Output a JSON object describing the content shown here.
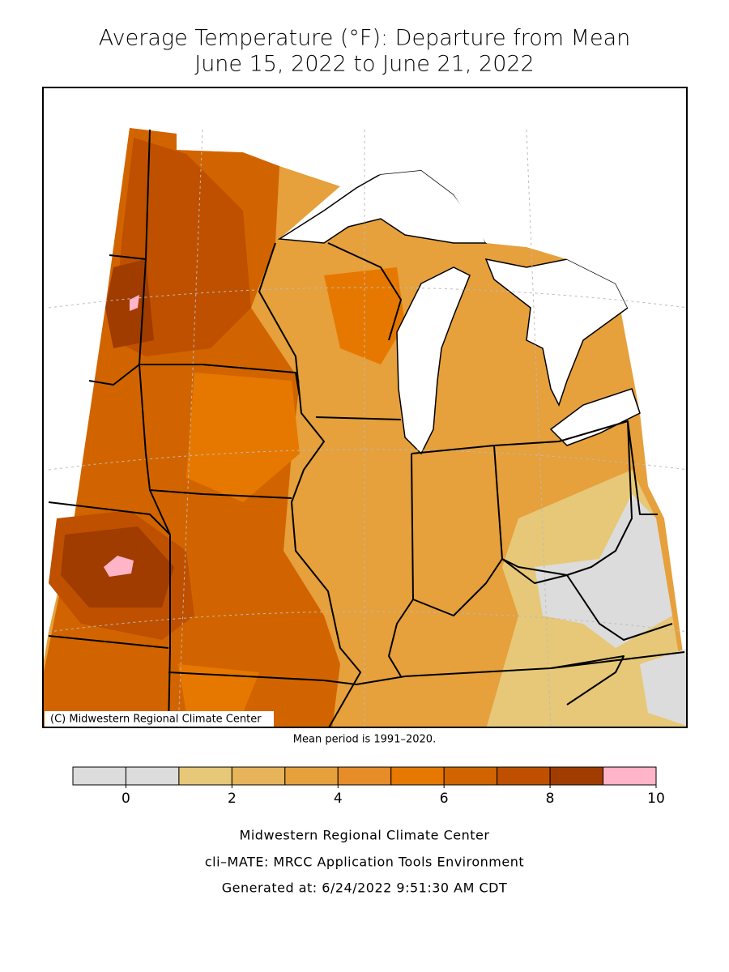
{
  "title": "Average Temperature (°F): Departure from Mean",
  "subtitle": "June 15, 2022 to June 21, 2022",
  "map": {
    "credit": "(C) Midwestern Regional Climate Center"
  },
  "note": "Mean period is 1991–2020.",
  "legend": {
    "bins": [
      -1,
      0,
      1,
      2,
      3,
      4,
      5,
      6,
      7,
      8,
      9,
      10
    ],
    "colors": [
      "#dcdcdc",
      "#dcdcdc",
      "#e6c878",
      "#e6b45a",
      "#e6a03c",
      "#e68c28",
      "#e67800",
      "#d26400",
      "#be5000",
      "#a03c00",
      "#ffb4c8"
    ],
    "ticks": [
      0,
      2,
      4,
      6,
      8,
      10
    ]
  },
  "footer": [
    "Midwestern Regional Climate Center",
    "cli–MATE: MRCC Application Tools Environment",
    "Generated at: 6/24/2022 9:51:30 AM CDT"
  ]
}
